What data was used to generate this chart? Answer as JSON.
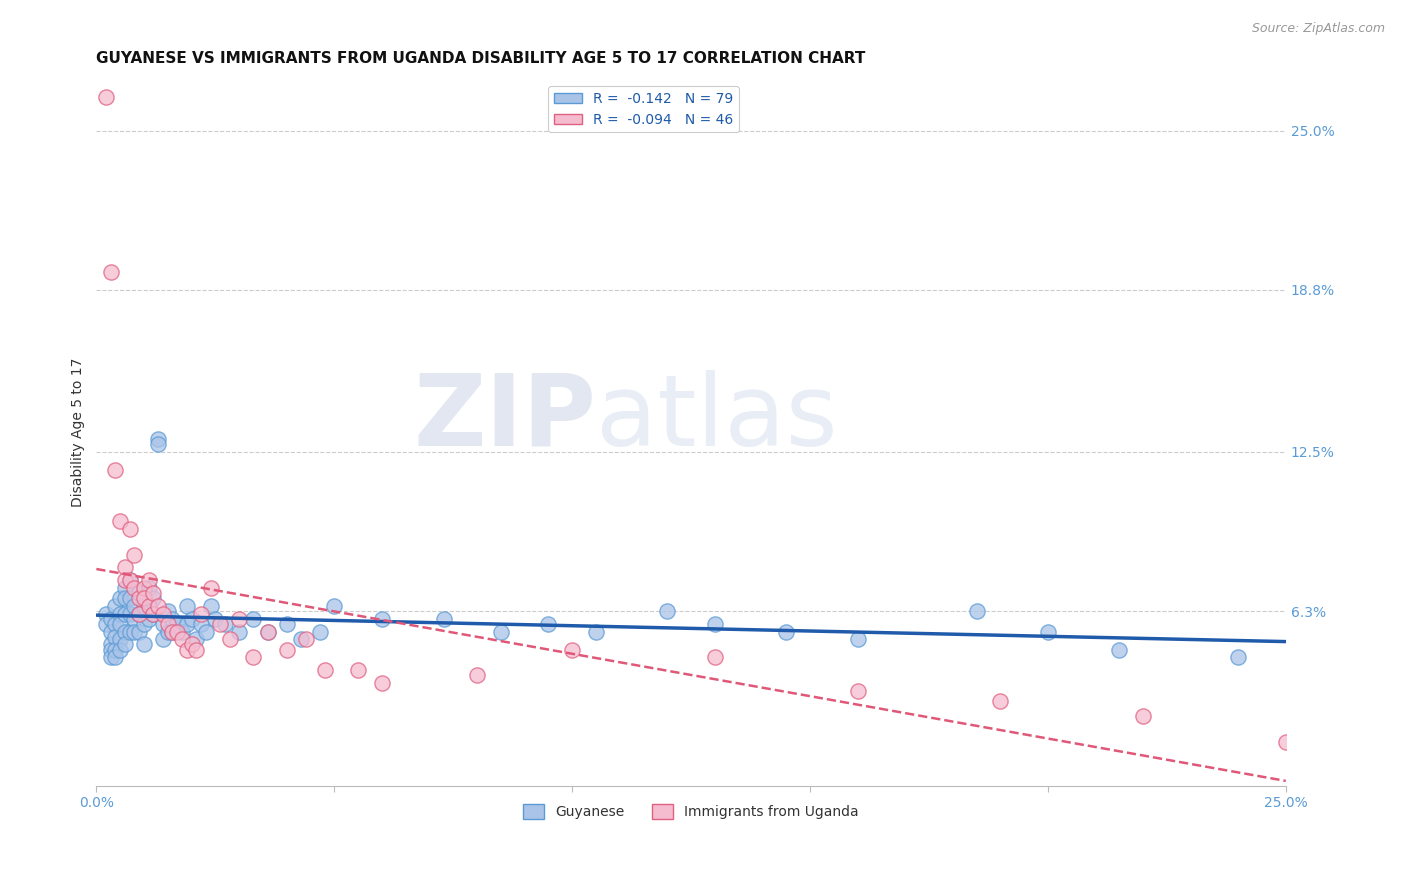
{
  "title": "GUYANESE VS IMMIGRANTS FROM UGANDA DISABILITY AGE 5 TO 17 CORRELATION CHART",
  "source": "Source: ZipAtlas.com",
  "ylabel": "Disability Age 5 to 17",
  "xlim": [
    0.0,
    0.25
  ],
  "ylim": [
    -0.005,
    0.27
  ],
  "xticks": [
    0.0,
    0.05,
    0.1,
    0.15,
    0.2,
    0.25
  ],
  "xticklabels": [
    "0.0%",
    "",
    "",
    "",
    "",
    "25.0%"
  ],
  "ytick_labels_right": [
    "25.0%",
    "18.8%",
    "12.5%",
    "6.3%"
  ],
  "ytick_values_right": [
    0.25,
    0.188,
    0.125,
    0.063
  ],
  "legend_entries_top": [
    {
      "label": "R =  -0.142   N = 79",
      "fc": "#aac4e8",
      "ec": "#5b9bd5"
    },
    {
      "label": "R =  -0.094   N = 46",
      "fc": "#f5bcd0",
      "ec": "#e06080"
    }
  ],
  "legend_entries_bottom": [
    {
      "label": "Guyanese",
      "fc": "#aac4e8",
      "ec": "#5b9bd5"
    },
    {
      "label": "Immigrants from Uganda",
      "fc": "#f5bcd0",
      "ec": "#e06080"
    }
  ],
  "watermark_zip": "ZIP",
  "watermark_atlas": "atlas",
  "blue_scatter_fc": "#aac4e8",
  "blue_scatter_ec": "#5b9bd5",
  "pink_scatter_fc": "#f5bcd0",
  "pink_scatter_ec": "#e06080",
  "trend_blue_color": "#1f5baa",
  "trend_pink_color": "#e05878",
  "background_color": "#ffffff",
  "grid_color": "#cccccc",
  "title_fontsize": 11,
  "axis_label_fontsize": 10,
  "tick_fontsize": 10,
  "legend_fontsize": 10,
  "source_fontsize": 9,
  "guyanese_points": [
    [
      0.002,
      0.062
    ],
    [
      0.002,
      0.058
    ],
    [
      0.003,
      0.06
    ],
    [
      0.003,
      0.055
    ],
    [
      0.003,
      0.05
    ],
    [
      0.003,
      0.048
    ],
    [
      0.003,
      0.045
    ],
    [
      0.004,
      0.065
    ],
    [
      0.004,
      0.058
    ],
    [
      0.004,
      0.053
    ],
    [
      0.004,
      0.048
    ],
    [
      0.004,
      0.045
    ],
    [
      0.005,
      0.068
    ],
    [
      0.005,
      0.062
    ],
    [
      0.005,
      0.058
    ],
    [
      0.005,
      0.052
    ],
    [
      0.005,
      0.048
    ],
    [
      0.006,
      0.072
    ],
    [
      0.006,
      0.068
    ],
    [
      0.006,
      0.062
    ],
    [
      0.006,
      0.055
    ],
    [
      0.006,
      0.05
    ],
    [
      0.007,
      0.075
    ],
    [
      0.007,
      0.068
    ],
    [
      0.007,
      0.062
    ],
    [
      0.007,
      0.055
    ],
    [
      0.008,
      0.065
    ],
    [
      0.008,
      0.06
    ],
    [
      0.008,
      0.055
    ],
    [
      0.009,
      0.07
    ],
    [
      0.009,
      0.062
    ],
    [
      0.009,
      0.055
    ],
    [
      0.01,
      0.065
    ],
    [
      0.01,
      0.058
    ],
    [
      0.01,
      0.05
    ],
    [
      0.011,
      0.072
    ],
    [
      0.011,
      0.065
    ],
    [
      0.011,
      0.06
    ],
    [
      0.012,
      0.068
    ],
    [
      0.012,
      0.062
    ],
    [
      0.013,
      0.13
    ],
    [
      0.013,
      0.128
    ],
    [
      0.014,
      0.058
    ],
    [
      0.014,
      0.052
    ],
    [
      0.015,
      0.063
    ],
    [
      0.015,
      0.055
    ],
    [
      0.016,
      0.06
    ],
    [
      0.016,
      0.055
    ],
    [
      0.017,
      0.058
    ],
    [
      0.018,
      0.055
    ],
    [
      0.019,
      0.065
    ],
    [
      0.019,
      0.058
    ],
    [
      0.02,
      0.06
    ],
    [
      0.021,
      0.052
    ],
    [
      0.022,
      0.058
    ],
    [
      0.023,
      0.055
    ],
    [
      0.024,
      0.065
    ],
    [
      0.025,
      0.06
    ],
    [
      0.027,
      0.058
    ],
    [
      0.03,
      0.055
    ],
    [
      0.033,
      0.06
    ],
    [
      0.036,
      0.055
    ],
    [
      0.04,
      0.058
    ],
    [
      0.043,
      0.052
    ],
    [
      0.047,
      0.055
    ],
    [
      0.05,
      0.065
    ],
    [
      0.06,
      0.06
    ],
    [
      0.073,
      0.06
    ],
    [
      0.085,
      0.055
    ],
    [
      0.095,
      0.058
    ],
    [
      0.105,
      0.055
    ],
    [
      0.12,
      0.063
    ],
    [
      0.13,
      0.058
    ],
    [
      0.145,
      0.055
    ],
    [
      0.16,
      0.052
    ],
    [
      0.185,
      0.063
    ],
    [
      0.2,
      0.055
    ],
    [
      0.215,
      0.048
    ],
    [
      0.24,
      0.045
    ]
  ],
  "uganda_points": [
    [
      0.002,
      0.263
    ],
    [
      0.003,
      0.195
    ],
    [
      0.004,
      0.118
    ],
    [
      0.005,
      0.098
    ],
    [
      0.006,
      0.08
    ],
    [
      0.006,
      0.075
    ],
    [
      0.007,
      0.095
    ],
    [
      0.007,
      0.075
    ],
    [
      0.008,
      0.085
    ],
    [
      0.008,
      0.072
    ],
    [
      0.009,
      0.068
    ],
    [
      0.009,
      0.062
    ],
    [
      0.01,
      0.072
    ],
    [
      0.01,
      0.068
    ],
    [
      0.011,
      0.075
    ],
    [
      0.011,
      0.065
    ],
    [
      0.012,
      0.07
    ],
    [
      0.012,
      0.062
    ],
    [
      0.013,
      0.065
    ],
    [
      0.014,
      0.062
    ],
    [
      0.015,
      0.058
    ],
    [
      0.016,
      0.055
    ],
    [
      0.017,
      0.055
    ],
    [
      0.018,
      0.052
    ],
    [
      0.019,
      0.048
    ],
    [
      0.02,
      0.05
    ],
    [
      0.021,
      0.048
    ],
    [
      0.022,
      0.062
    ],
    [
      0.024,
      0.072
    ],
    [
      0.026,
      0.058
    ],
    [
      0.028,
      0.052
    ],
    [
      0.03,
      0.06
    ],
    [
      0.033,
      0.045
    ],
    [
      0.036,
      0.055
    ],
    [
      0.04,
      0.048
    ],
    [
      0.044,
      0.052
    ],
    [
      0.048,
      0.04
    ],
    [
      0.055,
      0.04
    ],
    [
      0.06,
      0.035
    ],
    [
      0.08,
      0.038
    ],
    [
      0.1,
      0.048
    ],
    [
      0.13,
      0.045
    ],
    [
      0.16,
      0.032
    ],
    [
      0.19,
      0.028
    ],
    [
      0.22,
      0.022
    ],
    [
      0.25,
      0.012
    ]
  ]
}
